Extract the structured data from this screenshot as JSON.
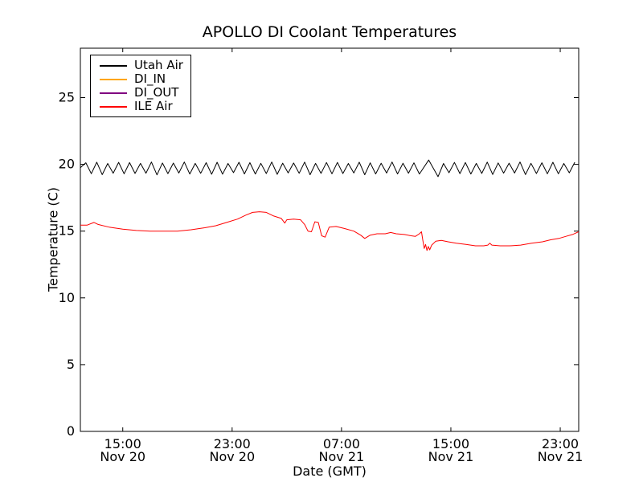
{
  "chart_data": {
    "type": "line",
    "title": "APOLLO DI Coolant Temperatures",
    "xlabel": "Date (GMT)",
    "ylabel": "Temperature (C)",
    "x_unit": "hours since Nov 20 00:00 GMT",
    "xlim": [
      11.9,
      48.35
    ],
    "ylim": [
      0,
      28.7
    ],
    "y_ticks": [
      0,
      5,
      10,
      15,
      20,
      25
    ],
    "x_ticks": [
      {
        "hours": 15,
        "time": "15:00",
        "date": "Nov 20"
      },
      {
        "hours": 23,
        "time": "23:00",
        "date": "Nov 20"
      },
      {
        "hours": 31,
        "time": "07:00",
        "date": "Nov 21"
      },
      {
        "hours": 39,
        "time": "15:00",
        "date": "Nov 21"
      },
      {
        "hours": 47,
        "time": "23:00",
        "date": "Nov 21"
      }
    ],
    "grid": false,
    "legend_position": "upper left",
    "series": [
      {
        "name": "Utah Air",
        "color": "#000000",
        "description": "rapid sawtooth oscillation around 19.7 C for entire span",
        "pattern": {
          "type": "sawtooth",
          "mean": 19.7,
          "amplitude": 0.42,
          "period_hours": 0.8,
          "x_start": 11.9,
          "x_end": 48.35,
          "anomaly_window": [
            36.2,
            37.4
          ]
        }
      },
      {
        "name": "DI_IN",
        "color": "#ffa500",
        "description": "in legend only, no visible data in plot",
        "points": []
      },
      {
        "name": "DI_OUT",
        "color": "#800080",
        "description": "in legend only, no visible data in plot",
        "points": []
      },
      {
        "name": "ILE Air",
        "color": "#ff0000",
        "description": "smooth curve ~15 C with peak 16.45 C near 00:30 Nov 21, noisy dips near 04-05h and 13:00 Nov 21, minimum ~13.55 C",
        "points": [
          [
            11.9,
            15.45
          ],
          [
            12.4,
            15.45
          ],
          [
            12.9,
            15.65
          ],
          [
            13.2,
            15.5
          ],
          [
            14.0,
            15.3
          ],
          [
            15.0,
            15.15
          ],
          [
            16.0,
            15.05
          ],
          [
            17.0,
            15.0
          ],
          [
            18.0,
            15.0
          ],
          [
            19.0,
            15.0
          ],
          [
            20.0,
            15.1
          ],
          [
            21.0,
            15.25
          ],
          [
            21.8,
            15.4
          ],
          [
            22.6,
            15.65
          ],
          [
            23.4,
            15.9
          ],
          [
            24.0,
            16.2
          ],
          [
            24.5,
            16.4
          ],
          [
            25.0,
            16.45
          ],
          [
            25.5,
            16.4
          ],
          [
            26.0,
            16.15
          ],
          [
            26.6,
            15.95
          ],
          [
            26.85,
            15.6
          ],
          [
            27.0,
            15.85
          ],
          [
            27.5,
            15.9
          ],
          [
            28.0,
            15.85
          ],
          [
            28.3,
            15.5
          ],
          [
            28.55,
            15.0
          ],
          [
            28.8,
            14.95
          ],
          [
            29.05,
            15.7
          ],
          [
            29.3,
            15.65
          ],
          [
            29.55,
            14.65
          ],
          [
            29.8,
            14.55
          ],
          [
            30.1,
            15.3
          ],
          [
            30.6,
            15.35
          ],
          [
            31.2,
            15.2
          ],
          [
            31.9,
            15.0
          ],
          [
            32.4,
            14.7
          ],
          [
            32.7,
            14.45
          ],
          [
            33.1,
            14.7
          ],
          [
            33.6,
            14.8
          ],
          [
            34.2,
            14.8
          ],
          [
            34.6,
            14.9
          ],
          [
            35.0,
            14.8
          ],
          [
            35.6,
            14.75
          ],
          [
            36.1,
            14.65
          ],
          [
            36.4,
            14.6
          ],
          [
            36.7,
            14.8
          ],
          [
            36.85,
            14.95
          ],
          [
            36.95,
            14.3
          ],
          [
            37.05,
            13.7
          ],
          [
            37.15,
            14.0
          ],
          [
            37.25,
            13.55
          ],
          [
            37.35,
            13.85
          ],
          [
            37.45,
            13.6
          ],
          [
            37.6,
            13.95
          ],
          [
            37.9,
            14.25
          ],
          [
            38.3,
            14.3
          ],
          [
            38.8,
            14.2
          ],
          [
            39.4,
            14.1
          ],
          [
            40.1,
            14.0
          ],
          [
            40.8,
            13.9
          ],
          [
            41.4,
            13.9
          ],
          [
            41.7,
            13.95
          ],
          [
            41.85,
            14.1
          ],
          [
            42.0,
            13.95
          ],
          [
            42.6,
            13.9
          ],
          [
            43.3,
            13.9
          ],
          [
            44.1,
            13.95
          ],
          [
            44.9,
            14.1
          ],
          [
            45.7,
            14.2
          ],
          [
            46.3,
            14.35
          ],
          [
            46.9,
            14.45
          ],
          [
            47.4,
            14.6
          ],
          [
            47.9,
            14.75
          ],
          [
            48.35,
            14.95
          ]
        ]
      }
    ]
  }
}
